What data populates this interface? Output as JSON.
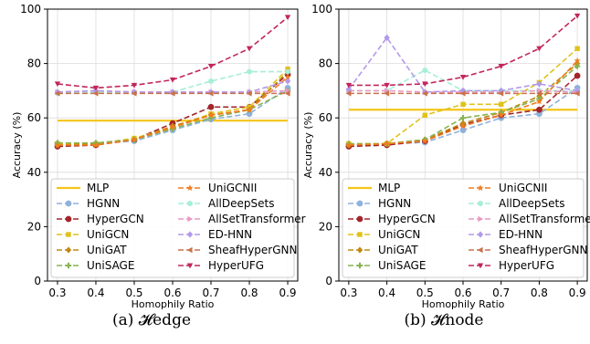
{
  "chart_data": [
    {
      "type": "line",
      "caption": "(a) 𝓗edge",
      "xlabel": "Homophily Ratio",
      "ylabel": "Accuracy (%)",
      "ylim": [
        0,
        100
      ],
      "yticks": [
        0,
        20,
        40,
        60,
        80,
        100
      ],
      "x": [
        0.3,
        0.4,
        0.5,
        0.6,
        0.7,
        0.8,
        0.9
      ],
      "xtick_labels": [
        "0.3",
        "0.4",
        "0.5",
        "0.6",
        "0.7",
        "0.8",
        "0.9"
      ],
      "grid": true,
      "legend_placement": "lower-center",
      "series": [
        {
          "name": "MLP",
          "values": [
            59,
            59,
            59,
            59,
            59,
            59,
            59
          ]
        },
        {
          "name": "HGNN",
          "values": [
            50.5,
            50.5,
            51.5,
            55.5,
            59.5,
            61.5,
            71
          ]
        },
        {
          "name": "HyperGCN",
          "values": [
            49.5,
            50,
            52,
            58,
            64,
            64,
            76
          ]
        },
        {
          "name": "UniGCN",
          "values": [
            50.5,
            50.5,
            52.5,
            56.5,
            61.5,
            64,
            78
          ]
        },
        {
          "name": "UniGAT",
          "values": [
            50,
            50.5,
            52,
            57,
            61,
            63,
            77
          ]
        },
        {
          "name": "UniSAGE",
          "values": [
            50.8,
            50.8,
            52,
            56,
            60,
            63,
            70
          ]
        },
        {
          "name": "UniGCNII",
          "values": [
            50,
            50,
            52,
            56.5,
            61,
            63,
            75
          ]
        },
        {
          "name": "AllDeepSets",
          "values": [
            69,
            69.5,
            69.5,
            69.5,
            73.5,
            77,
            77
          ]
        },
        {
          "name": "AllSetTransformer",
          "values": [
            69.5,
            70,
            69.5,
            69.5,
            69.5,
            69.5,
            70
          ]
        },
        {
          "name": "ED-HNN",
          "values": [
            69.5,
            70,
            69.5,
            69.5,
            69.5,
            69.5,
            73.5
          ]
        },
        {
          "name": "SheafHyperGNN",
          "values": [
            69,
            69,
            69,
            69,
            69,
            69,
            69
          ]
        },
        {
          "name": "HyperUFG",
          "values": [
            72.5,
            71,
            72,
            74,
            79,
            85.5,
            97
          ]
        }
      ]
    },
    {
      "type": "line",
      "caption": "(b) 𝓗node",
      "xlabel": "Homophily Ratio",
      "ylabel": "Accuracy (%)",
      "ylim": [
        0,
        100
      ],
      "yticks": [
        0,
        20,
        40,
        60,
        80,
        100
      ],
      "x": [
        0.3,
        0.4,
        0.5,
        0.6,
        0.7,
        0.8,
        0.9
      ],
      "xtick_labels": [
        "0.3",
        "0.4",
        "0.5",
        "0.6",
        "0.7",
        "0.8",
        "0.9"
      ],
      "grid": true,
      "legend_placement": "lower-center",
      "series": [
        {
          "name": "MLP",
          "values": [
            63,
            63,
            63,
            63,
            63,
            63,
            63
          ]
        },
        {
          "name": "HGNN",
          "values": [
            50,
            50.5,
            51,
            55.5,
            60,
            61.5,
            71
          ]
        },
        {
          "name": "HyperGCN",
          "values": [
            49.5,
            50,
            51.5,
            57.5,
            61,
            63,
            75.5
          ]
        },
        {
          "name": "UniGCN",
          "values": [
            50.5,
            50.5,
            61,
            65,
            65,
            73,
            85.5
          ]
        },
        {
          "name": "UniGAT",
          "values": [
            50,
            50.5,
            52,
            58,
            62,
            68,
            80
          ]
        },
        {
          "name": "UniSAGE",
          "values": [
            50.5,
            50.5,
            52,
            60,
            62,
            67,
            79
          ]
        },
        {
          "name": "UniGCNII",
          "values": [
            50,
            50.5,
            51.5,
            57,
            61,
            66,
            81
          ]
        },
        {
          "name": "AllDeepSets",
          "values": [
            70,
            70,
            77.5,
            70,
            70,
            70,
            70
          ]
        },
        {
          "name": "AllSetTransformer",
          "values": [
            70,
            70,
            69.5,
            69.5,
            69.5,
            70,
            69.5
          ]
        },
        {
          "name": "ED-HNN",
          "values": [
            70.5,
            89.5,
            69.5,
            70,
            70,
            72.5,
            70
          ]
        },
        {
          "name": "SheafHyperGNN",
          "values": [
            69,
            69,
            69,
            69,
            69,
            69,
            69
          ]
        },
        {
          "name": "HyperUFG",
          "values": [
            72,
            72,
            72.5,
            75,
            79,
            85.5,
            97.5
          ]
        }
      ]
    }
  ],
  "styles": [
    {
      "name": "MLP",
      "color": "#f5c518",
      "marker": "none",
      "dash": "solid"
    },
    {
      "name": "HGNN",
      "color": "#8fb1dc",
      "marker": "circle",
      "dash": "dashed"
    },
    {
      "name": "HyperGCN",
      "color": "#a3252b",
      "marker": "circle",
      "dash": "dashed"
    },
    {
      "name": "UniGCN",
      "color": "#e0c21a",
      "marker": "square",
      "dash": "dashed"
    },
    {
      "name": "UniGAT",
      "color": "#c08a12",
      "marker": "diamond",
      "dash": "dashed"
    },
    {
      "name": "UniSAGE",
      "color": "#86b352",
      "marker": "plus",
      "dash": "dashed"
    },
    {
      "name": "UniGCNII",
      "color": "#f07c1e",
      "marker": "star",
      "dash": "dashed"
    },
    {
      "name": "AllDeepSets",
      "color": "#a6eed9",
      "marker": "hexagon",
      "dash": "dashed"
    },
    {
      "name": "AllSetTransformer",
      "color": "#e89ac5",
      "marker": "triangle-right",
      "dash": "dashed"
    },
    {
      "name": "ED-HNN",
      "color": "#b399ea",
      "marker": "diamond",
      "dash": "dashed"
    },
    {
      "name": "SheafHyperGNN",
      "color": "#c9724a",
      "marker": "triangle-left",
      "dash": "dashed"
    },
    {
      "name": "HyperUFG",
      "color": "#c2255c",
      "marker": "triangle-down",
      "dash": "dashed"
    }
  ]
}
